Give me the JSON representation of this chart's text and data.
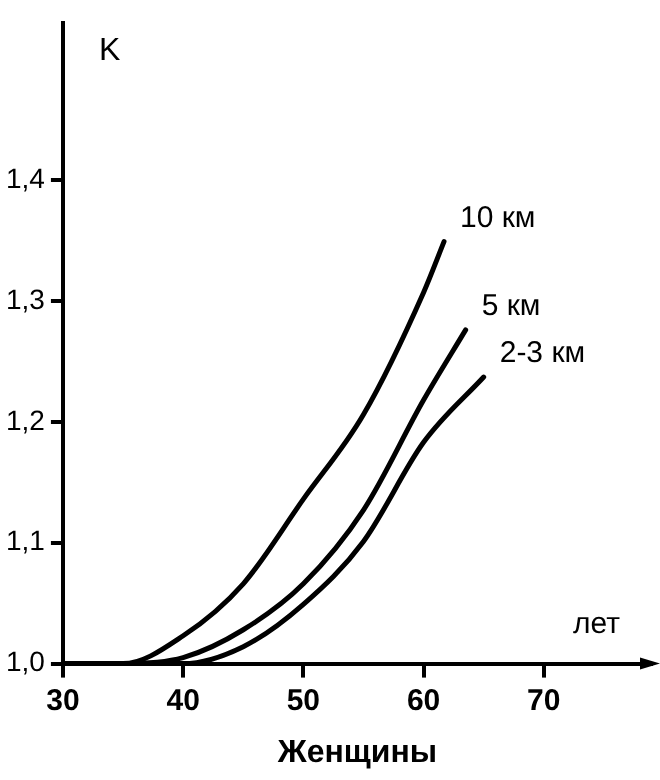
{
  "chart_data": {
    "type": "line",
    "xlabel": "Женщины",
    "ylabel": "K",
    "annotations": [
      "лет"
    ],
    "xlim": [
      30,
      79
    ],
    "xticks": [
      30,
      40,
      50,
      60,
      70
    ],
    "ylim": [
      1,
      1.53
    ],
    "yticks": [
      {
        "value": 1,
        "label": "1,0"
      },
      {
        "value": 1.1,
        "label": "1,1"
      },
      {
        "value": 1.2,
        "label": "1,2"
      },
      {
        "value": 1.3,
        "label": "1,3"
      },
      {
        "value": 1.4,
        "label": "1,4"
      }
    ],
    "grid": false,
    "legend": false,
    "marker": "none",
    "line_style": "solid",
    "series": [
      {
        "name": "10 км",
        "color": "#000000",
        "x": [
          30,
          35,
          40,
          45,
          50,
          55,
          60,
          61.7
        ],
        "values": [
          1.0,
          1.0,
          1.023,
          1.066,
          1.136,
          1.206,
          1.307,
          1.349
        ]
      },
      {
        "name": "5 км",
        "color": "#000000",
        "x": [
          30,
          35,
          40,
          45,
          50,
          55,
          60,
          63.5
        ],
        "values": [
          1.0,
          1.0,
          1.005,
          1.028,
          1.066,
          1.127,
          1.218,
          1.276
        ]
      },
      {
        "name": "2-3 км",
        "color": "#000000",
        "x": [
          30,
          35,
          40,
          45,
          50,
          55,
          60,
          65
        ],
        "values": [
          1.0,
          1.0,
          1.0,
          1.014,
          1.049,
          1.101,
          1.183,
          1.237
        ]
      }
    ]
  }
}
